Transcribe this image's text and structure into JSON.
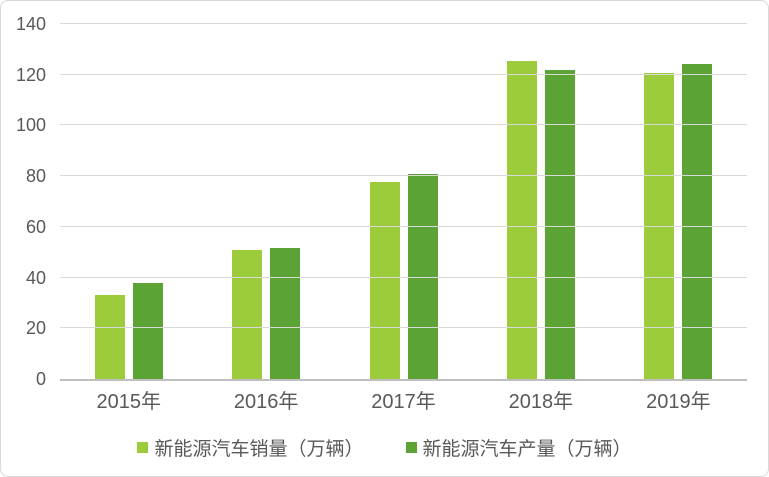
{
  "chart_data": {
    "type": "bar",
    "title": "",
    "categories": [
      "2015年",
      "2016年",
      "2017年",
      "2018年",
      "2019年"
    ],
    "series": [
      {
        "name": "新能源汽车销量（万辆）",
        "color": "#9CCB3B",
        "values": [
          33.1,
          50.7,
          77.7,
          125.6,
          120.6
        ]
      },
      {
        "name": "新能源汽车产量（万辆）",
        "color": "#5CA335",
        "values": [
          37.9,
          51.7,
          81,
          122,
          124.2
        ]
      }
    ],
    "xlabel": "",
    "ylabel": "",
    "ylim": [
      0,
      140
    ],
    "yticks": [
      0,
      20,
      40,
      60,
      80,
      100,
      120,
      140
    ],
    "grid": true,
    "legend_position": "bottom"
  },
  "colors": {
    "grid_line": "#D9D9D9",
    "axis_line": "#BFBFBF",
    "tick_text": "#595959",
    "frame_border": "#D9D9D9",
    "background": "#FFFFFF",
    "series_sales": "#9CCB3B",
    "series_production": "#5CA335"
  }
}
